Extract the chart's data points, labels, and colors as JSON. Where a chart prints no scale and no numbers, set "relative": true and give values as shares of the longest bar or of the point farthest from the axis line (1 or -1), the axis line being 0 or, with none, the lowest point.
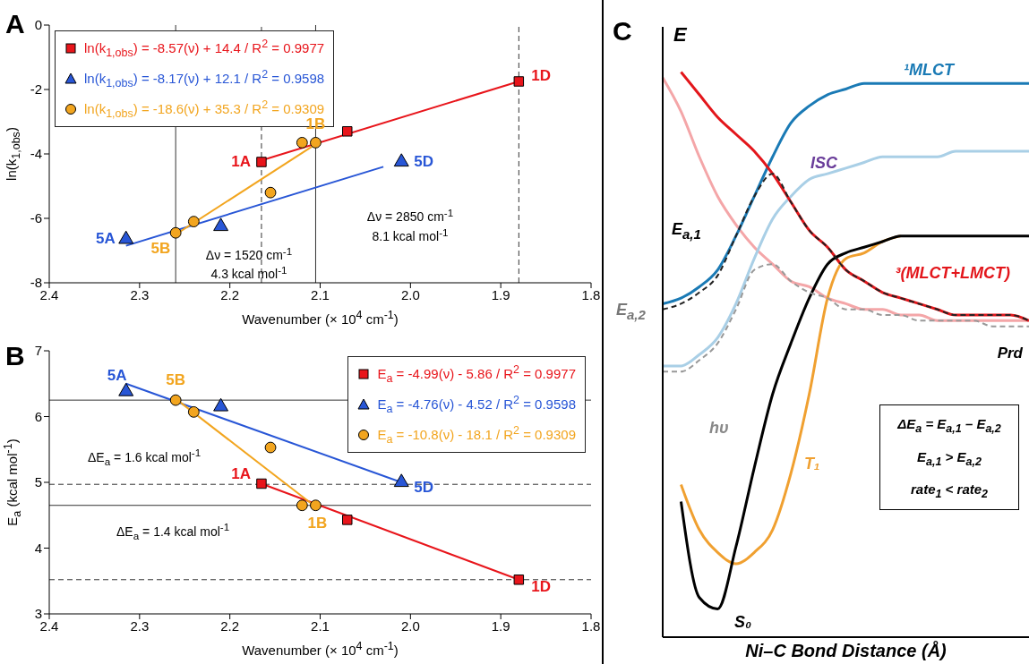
{
  "chart_data": [
    {
      "type": "scatter",
      "title": "A",
      "xlabel": "Wavenumber (× 10$^{4}$ cm$^{-1}$)",
      "ylabel": "ln(k$_{1,obs}$)",
      "xlim": [
        2.4,
        1.8
      ],
      "xticks": [
        2.4,
        2.3,
        2.2,
        2.1,
        {
          "value": 2,
          "label": "2.0"
        },
        1.9,
        1.8
      ],
      "ylim": [
        -8,
        0
      ],
      "yticks": [
        -8,
        -6,
        -4,
        -2,
        0
      ],
      "legend": "top left",
      "series": [
        {
          "type": "line",
          "color": "#e8151b",
          "x": [
            2.165,
            1.88
          ],
          "values": [
            -4.2,
            -1.75
          ]
        },
        {
          "type": "line",
          "color": "#2856d6",
          "x": [
            2.315,
            2.03
          ],
          "values": [
            -6.85,
            -4.4
          ]
        },
        {
          "type": "line",
          "color": "#f2a51f",
          "x": [
            2.26,
            2.105
          ],
          "values": [
            -6.5,
            -3.7
          ]
        },
        {
          "name": "ln(k$_{1,obs}$) = -8.57(ν) + 14.4 / R$^{2}$ = 0.9977",
          "color": "#e8151b",
          "marker": "square",
          "x": [
            2.165,
            2.07,
            1.88
          ],
          "values": [
            -4.25,
            -3.3,
            -1.75
          ]
        },
        {
          "name": "ln(k$_{1,obs}$) = -8.17(ν) + 12.1 / R$^{2}$ = 0.9598",
          "color": "#2856d6",
          "marker": "triangle",
          "x": [
            2.315,
            2.21,
            2.01
          ],
          "values": [
            -6.65,
            -6.25,
            -4.25
          ]
        },
        {
          "name": "ln(k$_{1,obs}$) = -18.6(ν) + 35.3 / R$^{2}$ = 0.9309",
          "color": "#f2a51f",
          "marker": "circle",
          "x": [
            2.26,
            2.24,
            2.155,
            2.12,
            2.105
          ],
          "values": [
            -6.45,
            -6.1,
            -5.2,
            -3.65,
            -3.65
          ]
        }
      ],
      "ref_lines": [
        {
          "axis": "x",
          "value": 2.26,
          "line_style": "solid",
          "color": "#333333"
        },
        {
          "axis": "x",
          "value": 2.165,
          "line_style": "dashed",
          "color": "#333333"
        },
        {
          "axis": "x",
          "value": 2.105,
          "line_style": "solid",
          "color": "#333333"
        },
        {
          "axis": "x",
          "value": 1.88,
          "line_style": "dashed",
          "color": "#333333"
        }
      ],
      "annotations": [
        {
          "text": "1A",
          "x": 2.165,
          "y": -4.25
        },
        {
          "text": "1B",
          "x": 2.105,
          "y": -3.65
        },
        {
          "text": "1D",
          "x": 1.88,
          "y": -1.75
        },
        {
          "text": "5A",
          "x": 2.315,
          "y": -6.65
        },
        {
          "text": "5B",
          "x": 2.26,
          "y": -6.45
        },
        {
          "text": "5D",
          "x": 2.01,
          "y": -4.25
        },
        "Δν = 1520 cm$^{-1}$",
        "4.3 kcal mol$^{-1}$",
        "Δν = 2850 cm$^{-1}$",
        "8.1 kcal mol$^{-1}$"
      ]
    },
    {
      "type": "scatter",
      "title": "B",
      "xlabel": "Wavenumber (× 10$^{4}$ cm$^{-1}$)",
      "ylabel": "E$_{a}$ (kcal mol$^{-1}$)",
      "xlim": [
        2.4,
        1.8
      ],
      "xticks": [
        2.4,
        2.3,
        2.2,
        2.1,
        {
          "value": 2,
          "label": "2.0"
        },
        1.9,
        1.8
      ],
      "ylim": [
        3,
        7
      ],
      "yticks": [
        3,
        4,
        5,
        6,
        7
      ],
      "legend": "top right",
      "series": [
        {
          "type": "line",
          "color": "#e8151b",
          "x": [
            2.165,
            1.88
          ],
          "values": [
            4.98,
            3.52
          ]
        },
        {
          "type": "line",
          "color": "#2856d6",
          "x": [
            2.315,
            2.01
          ],
          "values": [
            6.5,
            5.0
          ]
        },
        {
          "type": "line",
          "color": "#f2a51f",
          "x": [
            2.26,
            2.11
          ],
          "values": [
            6.27,
            4.68
          ]
        },
        {
          "name": "E$_{a}$ = -4.99(ν) - 5.86 / R$^{2}$ = 0.9977",
          "color": "#e8151b",
          "marker": "square",
          "x": [
            2.165,
            2.07,
            1.88
          ],
          "values": [
            4.98,
            4.43,
            3.52
          ]
        },
        {
          "name": "E$_{a}$ = -4.76(ν) - 4.52 / R$^{2}$ = 0.9598",
          "color": "#2856d6",
          "marker": "triangle",
          "x": [
            2.315,
            2.21,
            2.01
          ],
          "values": [
            6.38,
            6.15,
            5.0
          ]
        },
        {
          "name": "E$_{a}$ = -10.8(ν) - 18.1 / R$^{2}$ = 0.9309",
          "color": "#f2a51f",
          "marker": "circle",
          "x": [
            2.26,
            2.24,
            2.155,
            2.12,
            2.105
          ],
          "values": [
            6.25,
            6.07,
            5.53,
            4.65,
            4.65
          ]
        }
      ],
      "ref_lines": [
        {
          "axis": "y",
          "value": 6.25,
          "line_style": "solid",
          "color": "#333333"
        },
        {
          "axis": "y",
          "value": 4.97,
          "line_style": "dashed",
          "color": "#333333"
        },
        {
          "axis": "y",
          "value": 4.65,
          "line_style": "solid",
          "color": "#333333"
        },
        {
          "axis": "y",
          "value": 3.52,
          "line_style": "dashed",
          "color": "#333333"
        }
      ],
      "annotations": [
        {
          "text": "5A",
          "x": 2.315,
          "y": 6.38
        },
        {
          "text": "5B",
          "x": 2.26,
          "y": 6.25
        },
        {
          "text": "1A",
          "x": 2.165,
          "y": 4.98
        },
        {
          "text": "1B",
          "x": 2.105,
          "y": 4.65
        },
        {
          "text": "5D",
          "x": 2.01,
          "y": 5.0
        },
        {
          "text": "1D",
          "x": 1.88,
          "y": 3.52
        },
        "ΔE$_{a}$ = 1.6 kcal mol$^{-1}$",
        "ΔE$_{a}$ = 1.4 kcal mol$^{-1}$"
      ]
    },
    {
      "type": "line",
      "title": "C",
      "xlabel": "Ni–C Bond Distance (Å)",
      "ylabel": "E",
      "relative": true,
      "marker": "none",
      "categories": [
        null,
        null,
        null,
        null,
        null,
        null,
        null,
        null,
        null,
        null,
        null,
        null,
        null,
        null,
        null,
        null,
        null,
        null,
        null,
        null,
        null
      ],
      "series": [
        {
          "color": "#f4a6a8",
          "line_style": "solid",
          "values": [
            0.99,
            0.93,
            0.85,
            0.78,
            0.73,
            0.69,
            0.66,
            0.63,
            0.62,
            0.6,
            0.59,
            0.58,
            0.58,
            0.57,
            0.57,
            0.56,
            0.56,
            0.56,
            0.56,
            0.56,
            0.56
          ]
        },
        {
          "color": "#a9cfe6",
          "line_style": "solid",
          "values": [
            0.48,
            0.48,
            0.5,
            0.53,
            0.59,
            0.67,
            0.74,
            0.78,
            0.81,
            0.82,
            0.83,
            0.84,
            0.85,
            0.85,
            0.85,
            0.85,
            0.86,
            0.86,
            0.86,
            0.86,
            0.86
          ]
        },
        {
          "color": "#222222",
          "line_style": "dashed",
          "values": [
            0.58,
            0.59,
            0.61,
            0.64,
            0.71,
            0.78,
            0.82,
            0.77,
            0.72,
            0.69,
            0.65,
            0.63,
            0.61,
            0.6,
            0.59,
            0.58,
            0.57,
            0.57,
            0.57,
            0.57,
            0.56
          ]
        },
        {
          "color": "#999999",
          "line_style": "dashed",
          "values": [
            0.47,
            0.47,
            0.49,
            0.52,
            0.58,
            0.65,
            0.66,
            0.63,
            0.61,
            0.6,
            0.58,
            0.58,
            0.57,
            0.57,
            0.56,
            0.56,
            0.56,
            0.56,
            0.55,
            0.55,
            0.55
          ]
        },
        {
          "name": "¹MLCT",
          "color": "#1a7ab5",
          "line_style": "solid",
          "values": [
            0.59,
            0.6,
            0.62,
            0.65,
            0.71,
            0.78,
            0.85,
            0.91,
            0.94,
            0.96,
            0.97,
            0.98,
            0.98,
            0.98,
            0.98,
            0.98,
            0.98,
            0.98,
            0.98,
            0.98,
            0.98
          ]
        },
        {
          "name": "³(MLCT+LMCT)",
          "color": "#e3161b",
          "line_style": "solid",
          "values": [
            null,
            1.0,
            0.96,
            0.92,
            0.89,
            0.86,
            0.82,
            0.77,
            0.72,
            0.69,
            0.65,
            0.63,
            0.61,
            0.6,
            0.59,
            0.58,
            0.57,
            0.57,
            0.57,
            0.57,
            0.56
          ]
        },
        {
          "name": "T₁",
          "color": "#f0a030",
          "line_style": "solid",
          "values": [
            null,
            0.27,
            0.19,
            0.15,
            0.13,
            0.15,
            0.19,
            0.29,
            0.43,
            0.6,
            0.67,
            0.68,
            0.7,
            0.71,
            null,
            null,
            null,
            null,
            null,
            null,
            null
          ]
        },
        {
          "name": "S₀",
          "color": "#000000",
          "line_style": "solid",
          "values": [
            null,
            0.24,
            0.07,
            0.05,
            0.16,
            0.3,
            0.43,
            0.52,
            0.6,
            0.66,
            0.68,
            0.69,
            0.7,
            0.71,
            0.71,
            0.71,
            0.71,
            0.71,
            0.71,
            0.71,
            0.71
          ]
        }
      ],
      "annotations": [
        "ISC",
        "E$_{a,1}$",
        "E$_{a,2}$",
        "hυ",
        "Prd",
        "ΔE$_{a}$ = E$_{a,1}$ – E$_{a,2}$",
        "E$_{a,1}$ > E$_{a,2}$",
        "rate$_{1}$ < rate$_{2}$"
      ]
    }
  ]
}
